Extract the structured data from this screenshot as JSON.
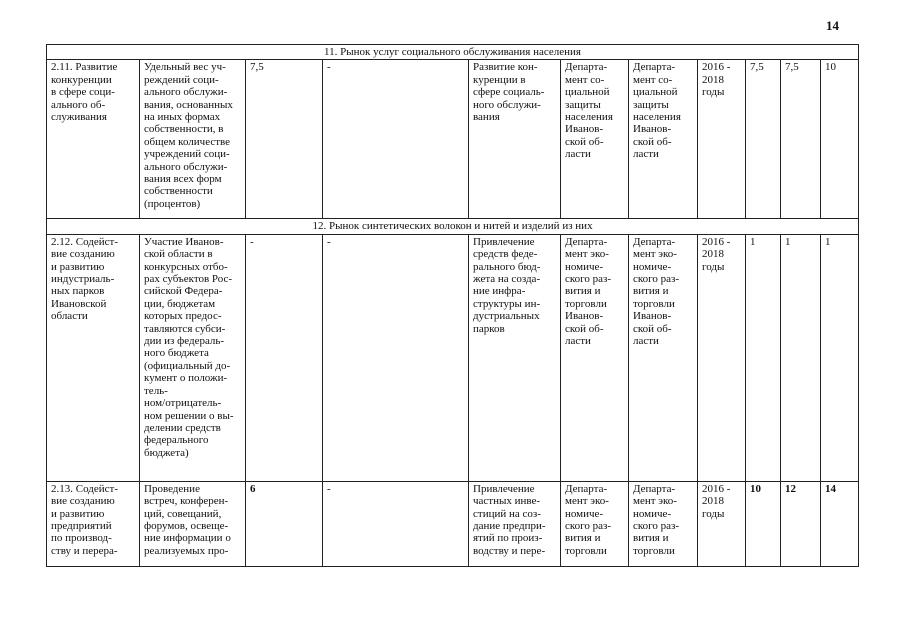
{
  "page_number": "14",
  "sections": [
    {
      "title": "11. Рынок услуг социального обслуживания населения",
      "rows": [
        [
          "2.11. Развитие\nконкуренции\nв сфере соци-\nального об-\nслуживания",
          "Удельный вес уч-\nреждений соци-\nального обслужи-\nвания, основанных\nна иных формах\nсобственности, в\nобщем количестве\nучреждений соци-\nального обслужи-\nвания всех форм\nсобственности\n(процентов)",
          "7,5",
          "-",
          "Развитие кон-\nкуренции в\nсфере социаль-\nного обслужи-\nвания",
          "Департа-\nмент со-\nциальной\nзащиты\nнаселения\nИванов-\nской об-\nласти",
          "Департа-\nмент со-\nциальной\nзащиты\nнаселения\nИванов-\nской об-\nласти",
          "2016 -\n2018\nгоды",
          "7,5",
          "7,5",
          "10"
        ]
      ]
    },
    {
      "title": "12. Рынок синтетических волокон и нитей и изделий из них",
      "rows": [
        [
          "2.12. Содейст-\nвие созданию\nи развитию\nиндустриаль-\nных парков\nИвановской\nобласти",
          "Участие Иванов-\nской области в\nконкурсных отбо-\nрах субъектов Рос-\nсийской Федера-\nции, бюджетам\nкоторых предос-\nтавляются субси-\nдии из федераль-\nного бюджета\n(официальный до-\nкумент о положи-\nтель-\nном/отрицатель-\nном решении о вы-\nделении средств\nфедерального\nбюджета)",
          "-",
          "-",
          "Привлечение\nсредств феде-\nрального бюд-\nжета на созда-\nние инфра-\nструктуры ин-\nдустриальных\nпарков",
          "Департа-\nмент эко-\nномиче-\nского раз-\nвития и\nторговли\nИванов-\nской об-\nласти",
          "Департа-\nмент эко-\nномиче-\nского раз-\nвития и\nторговли\nИванов-\nской об-\nласти",
          "2016 -\n2018\nгоды",
          "1",
          "1",
          "1"
        ],
        [
          "2.13. Содейст-\nвие созданию\nи развитию\nпредприятий\nпо производ-\nству и перера-",
          "Проведение\nвстреч, конферен-\nций, совещаний,\nфорумов, освеще-\nние информации о\nреализуемых про-",
          "6",
          "-",
          "Привлечение\nчастных инве-\nстиций на соз-\nдание предпри-\nятий по произ-\nводству и пере-",
          "Департа-\nмент эко-\nномиче-\nского раз-\nвития и\nторговли",
          "Департа-\nмент эко-\nномиче-\nского раз-\nвития и\nторговли",
          "2016 -\n2018\nгоды",
          "10",
          "12",
          "14"
        ]
      ]
    }
  ]
}
